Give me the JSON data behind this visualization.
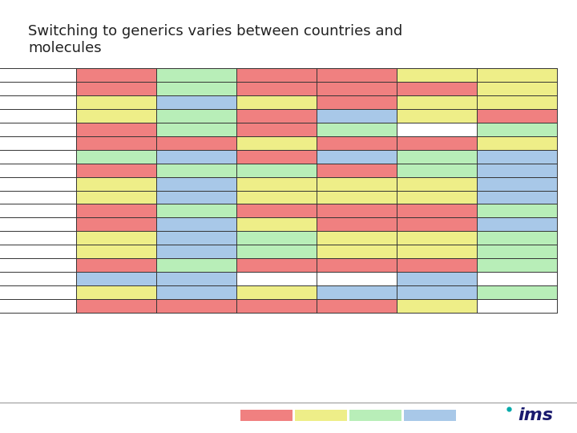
{
  "title": "Switching to generics varies between countries and\nmolecules",
  "title_fontsize": 13,
  "background_color": "#ffffff",
  "colors": {
    "red": "#F08080",
    "yellow": "#EEEE88",
    "green": "#B8EEB8",
    "blue": "#A8C8E8",
    "white": "#ffffff"
  },
  "grid": [
    [
      "red",
      "green",
      "red",
      "red",
      "yellow",
      "yellow"
    ],
    [
      "red",
      "green",
      "red",
      "red",
      "red",
      "yellow"
    ],
    [
      "yellow",
      "blue",
      "yellow",
      "red",
      "yellow",
      "yellow"
    ],
    [
      "yellow",
      "green",
      "red",
      "blue",
      "yellow",
      "red"
    ],
    [
      "red",
      "green",
      "red",
      "green",
      "white",
      "green"
    ],
    [
      "red",
      "red",
      "yellow",
      "red",
      "red",
      "yellow"
    ],
    [
      "green",
      "blue",
      "red",
      "blue",
      "green",
      "blue"
    ],
    [
      "red",
      "green",
      "green",
      "red",
      "green",
      "blue"
    ],
    [
      "yellow",
      "blue",
      "yellow",
      "yellow",
      "yellow",
      "blue"
    ],
    [
      "yellow",
      "blue",
      "yellow",
      "yellow",
      "yellow",
      "blue"
    ],
    [
      "red",
      "green",
      "red",
      "red",
      "red",
      "green"
    ],
    [
      "red",
      "blue",
      "yellow",
      "red",
      "red",
      "blue"
    ],
    [
      "yellow",
      "blue",
      "green",
      "yellow",
      "yellow",
      "green"
    ],
    [
      "yellow",
      "blue",
      "green",
      "yellow",
      "yellow",
      "green"
    ],
    [
      "red",
      "green",
      "red",
      "red",
      "red",
      "green"
    ],
    [
      "blue",
      "blue",
      "white",
      "white",
      "blue",
      "white"
    ],
    [
      "yellow",
      "blue",
      "yellow",
      "blue",
      "blue",
      "green"
    ],
    [
      "red",
      "red",
      "red",
      "red",
      "yellow",
      "white"
    ]
  ],
  "line_color": "#333333",
  "legend_colors": [
    "red",
    "yellow",
    "green",
    "blue"
  ]
}
